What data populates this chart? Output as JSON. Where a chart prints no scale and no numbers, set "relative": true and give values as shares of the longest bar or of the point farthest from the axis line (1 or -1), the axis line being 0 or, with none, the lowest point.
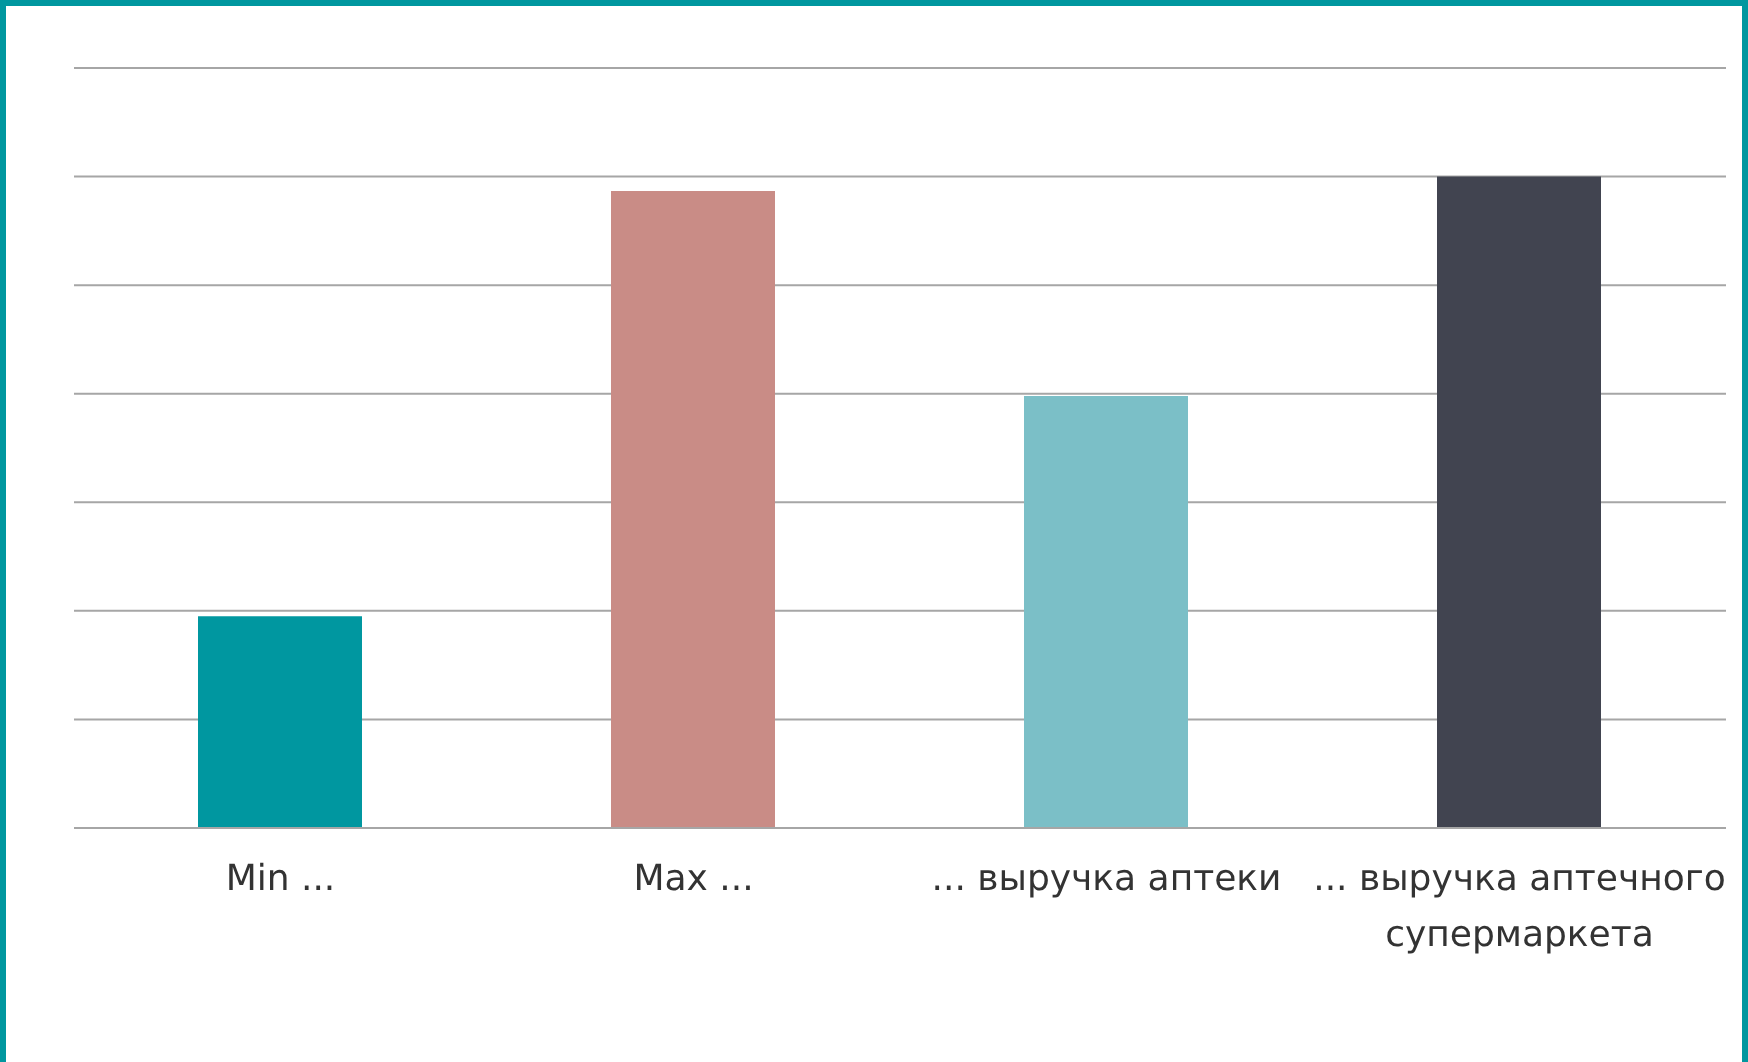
{
  "chart_data": {
    "type": "bar",
    "relative": true,
    "grid": "y",
    "categories": [
      "Min ...",
      "Max ...",
      "... выручка аптеки",
      "... выручка аптечного супермаркета"
    ],
    "values": [
      0.325,
      0.978,
      0.663,
      1
    ],
    "colors": [
      "#0097a0",
      "#c98c86",
      "#7bbfc7",
      "#414450"
    ]
  }
}
